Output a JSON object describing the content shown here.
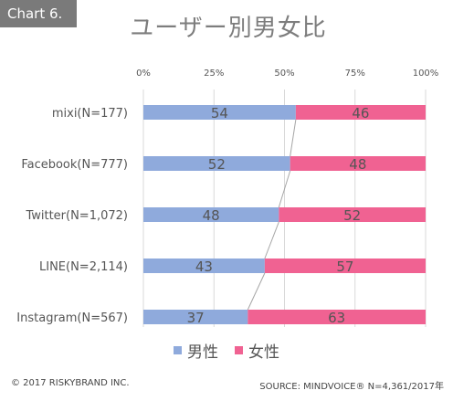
{
  "badge": "Chart 6.",
  "footer": {
    "copyright": "© 2017 RISKYBRAND INC.",
    "source": "SOURCE: MINDVOICE® N=4,361/2017年"
  },
  "colors": {
    "male": "#8faadc",
    "female": "#f06292",
    "connector": "#a6a6a6",
    "grid": "#d9d9d9"
  },
  "chart_data": {
    "type": "bar",
    "stacked": true,
    "orientation": "horizontal",
    "title": "ユーザー別男女比",
    "categories": [
      "mixi(N=177)",
      "Facebook(N=777)",
      "Twitter(N=1,072)",
      "LINE(N=2,114)",
      "Instagram(N=567)"
    ],
    "series": [
      {
        "name": "男性",
        "values": [
          54,
          52,
          48,
          43,
          37
        ]
      },
      {
        "name": "女性",
        "values": [
          46,
          48,
          52,
          57,
          63
        ]
      }
    ],
    "xlim": [
      0,
      100
    ],
    "x_ticks": [
      "0%",
      "25%",
      "50%",
      "75%",
      "100%"
    ],
    "grid": true,
    "legend": "bottom"
  }
}
